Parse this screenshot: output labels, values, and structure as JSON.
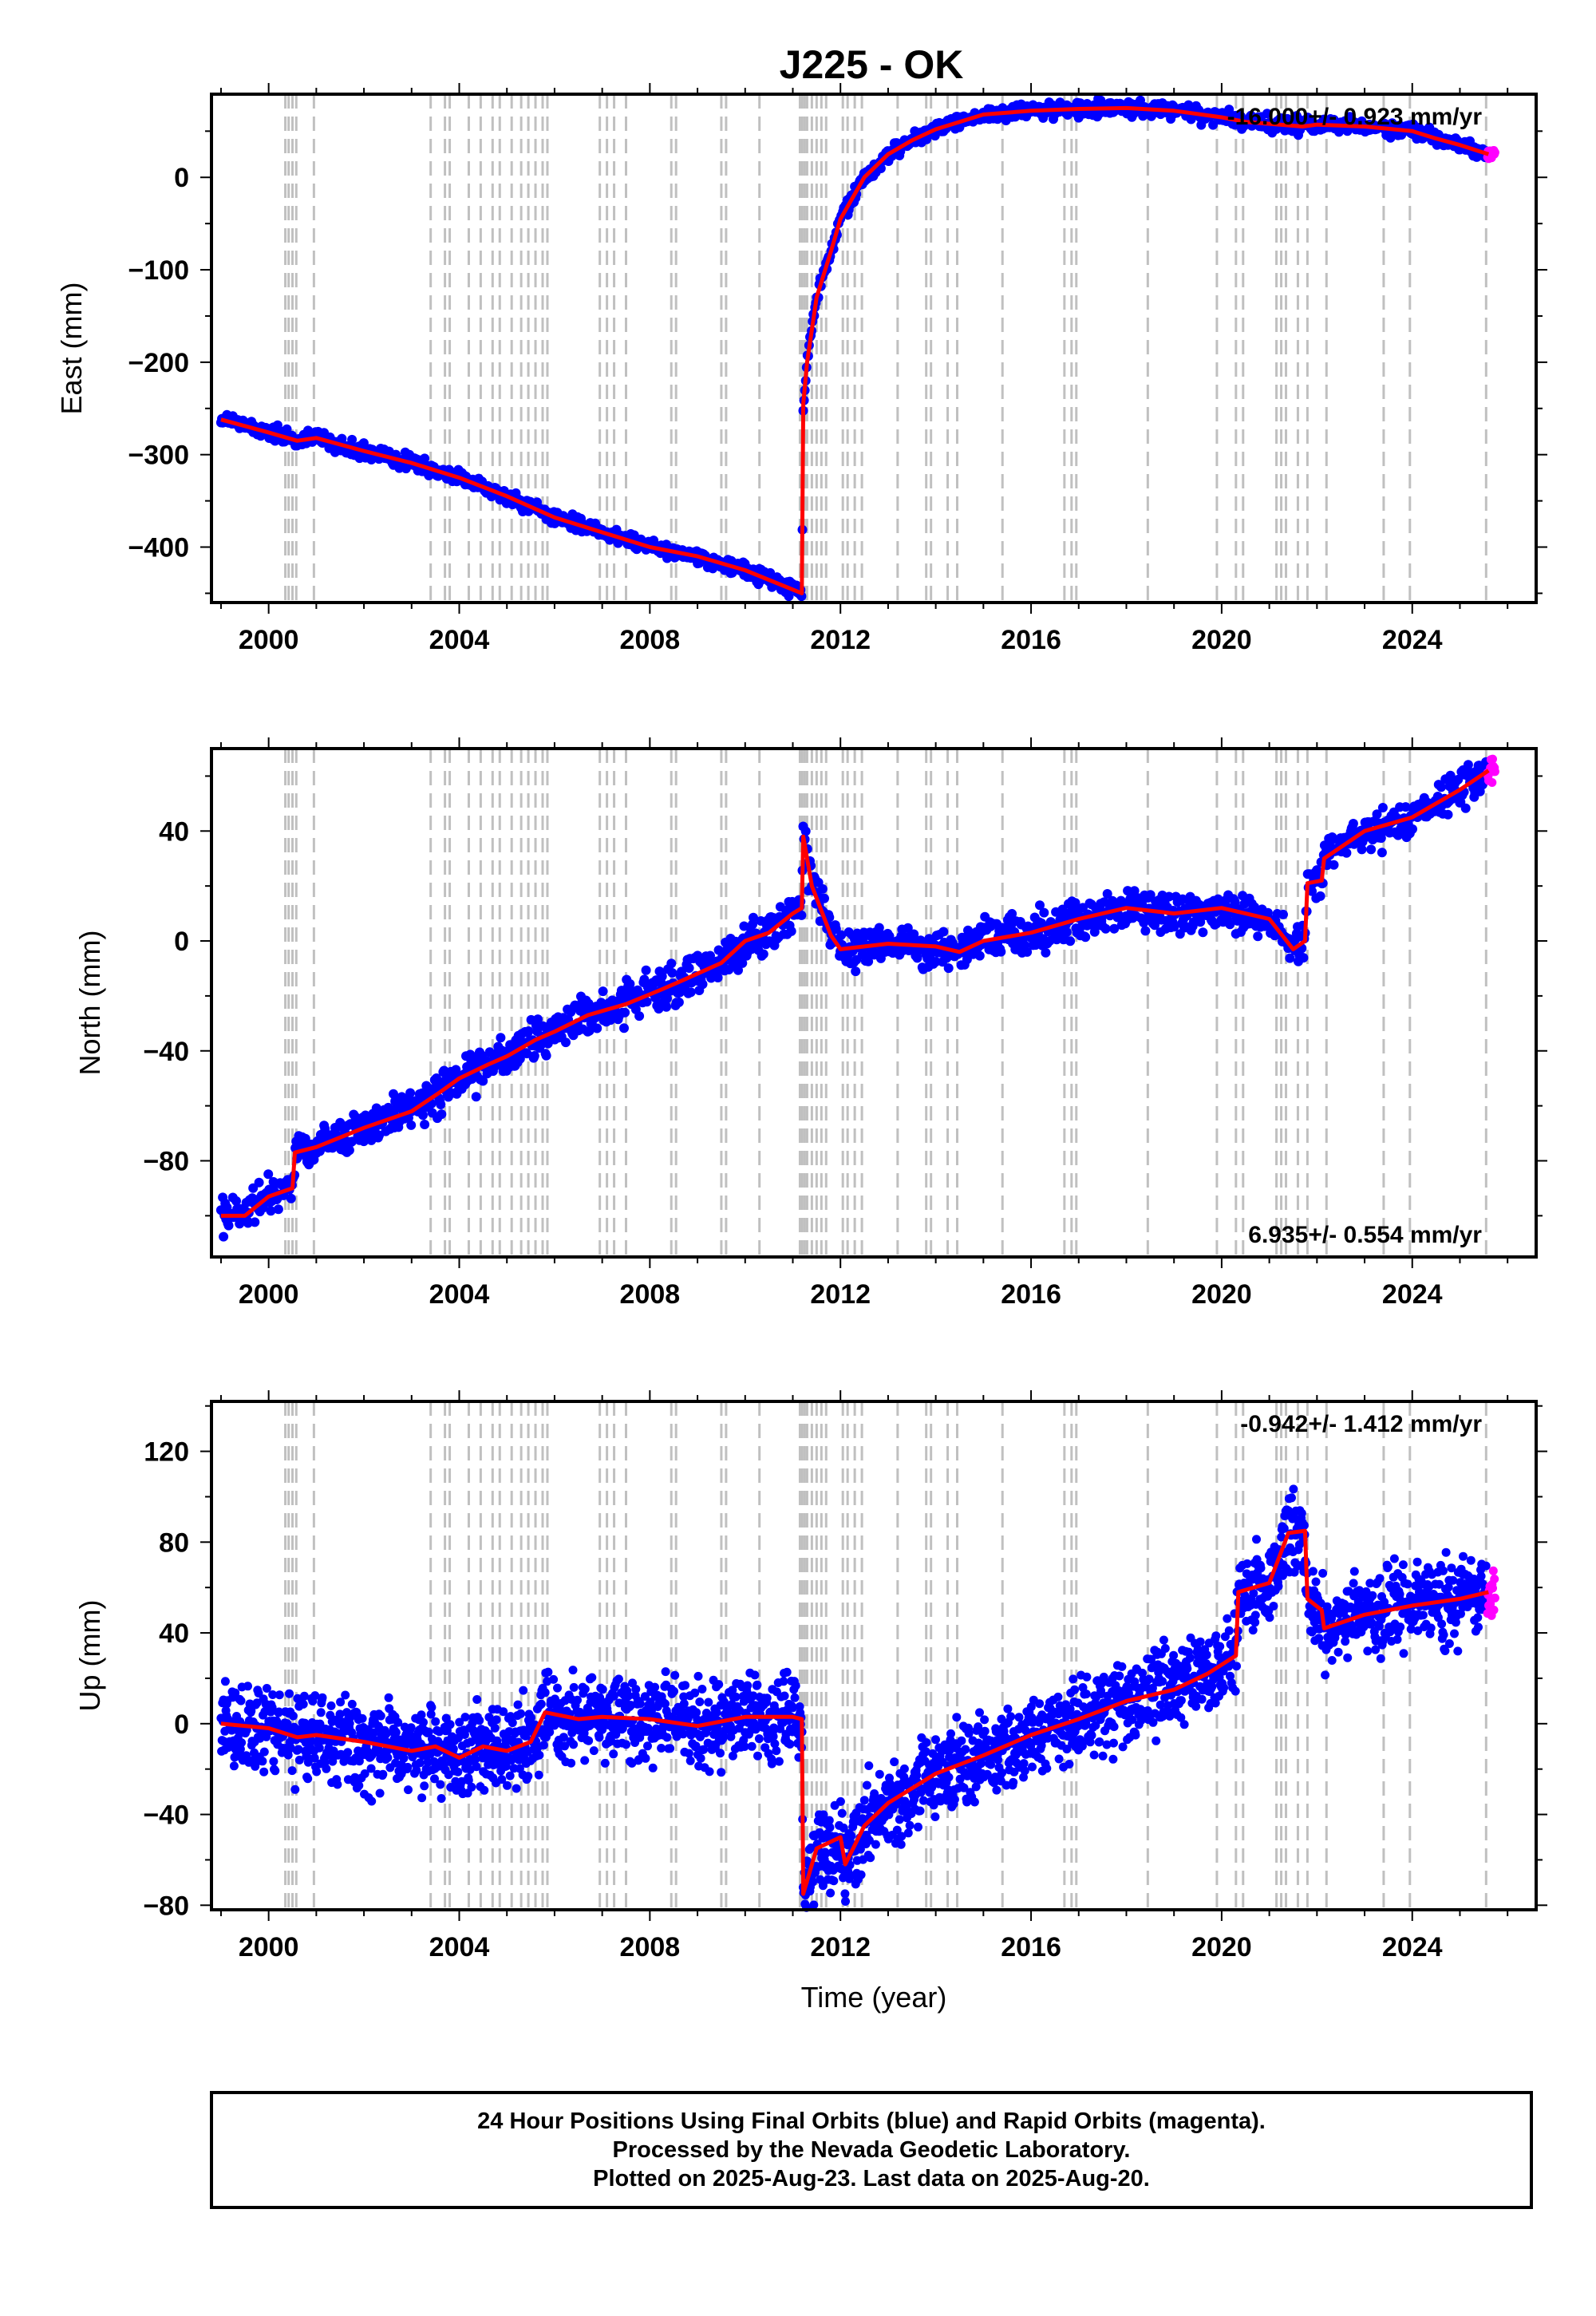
{
  "title": "J225 - OK",
  "footer": {
    "line1": "24 Hour Positions Using Final Orbits (blue) and Rapid Orbits (magenta).",
    "line2": "Processed by the Nevada Geodetic Laboratory.",
    "line3": "Plotted on 2025-Aug-23. Last data on 2025-Aug-20."
  },
  "colors": {
    "final_orbits": "#0000ff",
    "rapid_orbits": "#ff00ff",
    "model": "#ff0000",
    "events": "#c0c0c0"
  },
  "chart_data": [
    {
      "type": "scatter",
      "ylabel": "East (mm)",
      "xlabel": "",
      "rate_label": "-16.000+/- 0.923 mm/yr",
      "rate_position": "top-right",
      "xlim": [
        1998.8,
        2026.6
      ],
      "ylim": [
        -460,
        90
      ],
      "xticks": [
        2000,
        2004,
        2008,
        2012,
        2016,
        2020,
        2024
      ],
      "yticks": [
        -400,
        -300,
        -200,
        -100,
        0
      ],
      "grid": false,
      "series": [
        {
          "name": "",
          "points": [
            [
              1999.0,
              -262
            ],
            [
              2000.0,
              -276
            ],
            [
              2000.6,
              -285
            ],
            [
              2001.0,
              -282
            ],
            [
              2002.0,
              -296
            ],
            [
              2003.0,
              -309
            ],
            [
              2004.0,
              -325
            ],
            [
              2005.0,
              -345
            ],
            [
              2006.0,
              -368
            ],
            [
              2007.0,
              -384
            ],
            [
              2008.0,
              -400
            ],
            [
              2009.0,
              -410
            ],
            [
              2010.0,
              -425
            ],
            [
              2011.0,
              -446
            ],
            [
              2011.19,
              -450
            ],
            [
              2011.22,
              -245
            ],
            [
              2011.3,
              -200
            ],
            [
              2011.5,
              -130
            ],
            [
              2011.8,
              -80
            ],
            [
              2012.0,
              -45
            ],
            [
              2012.5,
              0
            ],
            [
              2013.0,
              25
            ],
            [
              2013.5,
              40
            ],
            [
              2014.0,
              52
            ],
            [
              2014.5,
              60
            ],
            [
              2015.0,
              68
            ],
            [
              2016.0,
              72
            ],
            [
              2017.0,
              74
            ],
            [
              2018.0,
              75
            ],
            [
              2019.0,
              72
            ],
            [
              2019.3,
              70
            ],
            [
              2020.0,
              65
            ],
            [
              2020.5,
              60
            ],
            [
              2021.0,
              58
            ],
            [
              2021.7,
              55
            ],
            [
              2022.0,
              57
            ],
            [
              2023.0,
              55
            ],
            [
              2024.0,
              50
            ],
            [
              2024.5,
              42
            ],
            [
              2025.0,
              35
            ],
            [
              2025.6,
              25
            ]
          ]
        }
      ]
    },
    {
      "type": "scatter",
      "ylabel": "North (mm)",
      "xlabel": "",
      "rate_label": "6.935+/- 0.554 mm/yr",
      "rate_position": "bottom-right",
      "xlim": [
        1998.8,
        2026.6
      ],
      "ylim": [
        -115,
        70
      ],
      "xticks": [
        2000,
        2004,
        2008,
        2012,
        2016,
        2020,
        2024
      ],
      "yticks": [
        -80,
        -40,
        0,
        40
      ],
      "grid": false,
      "series": [
        {
          "name": "",
          "points": [
            [
              1999.0,
              -100
            ],
            [
              1999.5,
              -100
            ],
            [
              2000.0,
              -93
            ],
            [
              2000.5,
              -90
            ],
            [
              2000.55,
              -77
            ],
            [
              2001.0,
              -75
            ],
            [
              2002.0,
              -68
            ],
            [
              2003.0,
              -62
            ],
            [
              2003.6,
              -55
            ],
            [
              2004.0,
              -50
            ],
            [
              2004.6,
              -45
            ],
            [
              2005.0,
              -42
            ],
            [
              2005.6,
              -36
            ],
            [
              2006.0,
              -33
            ],
            [
              2006.7,
              -27
            ],
            [
              2007.5,
              -23
            ],
            [
              2008.2,
              -18
            ],
            [
              2008.6,
              -15
            ],
            [
              2009.5,
              -8
            ],
            [
              2010.0,
              0
            ],
            [
              2010.5,
              3
            ],
            [
              2011.0,
              10
            ],
            [
              2011.19,
              12
            ],
            [
              2011.22,
              38
            ],
            [
              2011.4,
              20
            ],
            [
              2011.8,
              2
            ],
            [
              2012.0,
              -3
            ],
            [
              2013.0,
              -1
            ],
            [
              2014.0,
              -2
            ],
            [
              2014.5,
              -4
            ],
            [
              2015.0,
              0
            ],
            [
              2016.0,
              3
            ],
            [
              2017.0,
              8
            ],
            [
              2018.0,
              12
            ],
            [
              2019.0,
              10
            ],
            [
              2020.0,
              12
            ],
            [
              2021.0,
              8
            ],
            [
              2021.5,
              -3
            ],
            [
              2021.75,
              0
            ],
            [
              2021.8,
              21
            ],
            [
              2022.1,
              22
            ],
            [
              2022.15,
              30
            ],
            [
              2023.0,
              40
            ],
            [
              2024.0,
              45
            ],
            [
              2025.0,
              55
            ],
            [
              2025.6,
              62
            ]
          ]
        }
      ]
    },
    {
      "type": "scatter",
      "ylabel": "Up (mm)",
      "xlabel": "Time (year)",
      "rate_label": "-0.942+/- 1.412 mm/yr",
      "rate_position": "top-right",
      "xlim": [
        1998.8,
        2026.6
      ],
      "ylim": [
        -82,
        142
      ],
      "xticks": [
        2000,
        2004,
        2008,
        2012,
        2016,
        2020,
        2024
      ],
      "yticks": [
        -80,
        -40,
        0,
        40,
        80,
        120
      ],
      "grid": false,
      "series": [
        {
          "name": "",
          "points": [
            [
              1999.0,
              0
            ],
            [
              2000.0,
              -2
            ],
            [
              2000.6,
              -6
            ],
            [
              2001.0,
              -5
            ],
            [
              2002.0,
              -8
            ],
            [
              2003.0,
              -12
            ],
            [
              2003.5,
              -10
            ],
            [
              2004.0,
              -15
            ],
            [
              2004.5,
              -10
            ],
            [
              2005.0,
              -12
            ],
            [
              2005.5,
              -8
            ],
            [
              2005.8,
              5
            ],
            [
              2006.5,
              2
            ],
            [
              2007.0,
              3
            ],
            [
              2008.0,
              2
            ],
            [
              2009.0,
              -1
            ],
            [
              2010.0,
              3
            ],
            [
              2011.0,
              3
            ],
            [
              2011.19,
              2
            ],
            [
              2011.22,
              -75
            ],
            [
              2011.5,
              -55
            ],
            [
              2012.0,
              -50
            ],
            [
              2012.1,
              -62
            ],
            [
              2012.5,
              -45
            ],
            [
              2013.0,
              -35
            ],
            [
              2014.0,
              -22
            ],
            [
              2015.0,
              -14
            ],
            [
              2016.0,
              -5
            ],
            [
              2017.0,
              2
            ],
            [
              2018.0,
              10
            ],
            [
              2019.0,
              15
            ],
            [
              2019.7,
              22
            ],
            [
              2020.3,
              30
            ],
            [
              2020.35,
              58
            ],
            [
              2021.0,
              62
            ],
            [
              2021.4,
              84
            ],
            [
              2021.75,
              85
            ],
            [
              2021.8,
              55
            ],
            [
              2022.1,
              50
            ],
            [
              2022.15,
              42
            ],
            [
              2023.0,
              48
            ],
            [
              2024.0,
              52
            ],
            [
              2025.0,
              55
            ],
            [
              2025.6,
              58
            ]
          ]
        }
      ]
    }
  ]
}
